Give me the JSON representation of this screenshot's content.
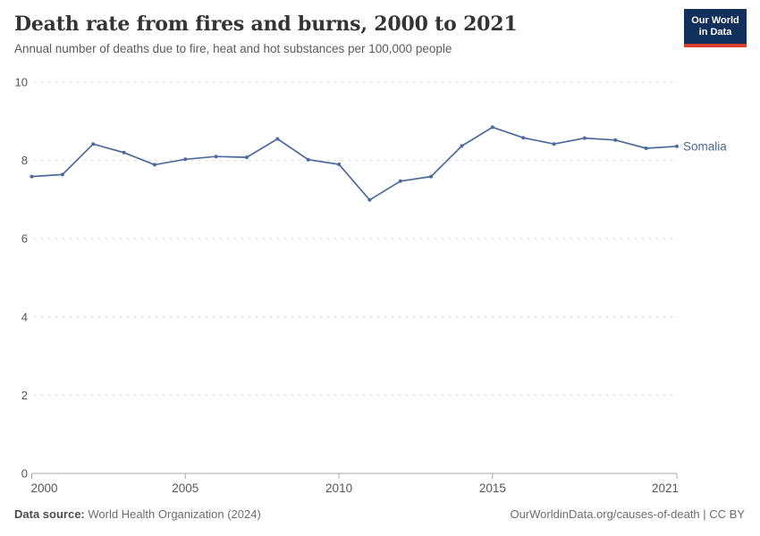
{
  "header": {
    "title": "Death rate from fires and burns, 2000 to 2021",
    "subtitle": "Annual number of deaths due to fire, heat and hot substances per 100,000 people",
    "logo": {
      "line1": "Our World",
      "line2": "in Data"
    }
  },
  "chart_data": {
    "type": "line",
    "title": "Death rate from fires and burns, 2000 to 2021",
    "x": [
      2000,
      2001,
      2002,
      2003,
      2004,
      2005,
      2006,
      2007,
      2008,
      2009,
      2010,
      2011,
      2012,
      2013,
      2014,
      2015,
      2016,
      2017,
      2018,
      2019,
      2020,
      2021
    ],
    "series": [
      {
        "name": "Somalia",
        "color": "#4c6a9c",
        "values": [
          7.59,
          7.64,
          8.42,
          8.2,
          7.89,
          8.03,
          8.1,
          8.08,
          8.55,
          8.02,
          7.9,
          6.99,
          7.47,
          7.59,
          8.37,
          8.85,
          8.58,
          8.42,
          8.57,
          8.52,
          8.31,
          8.36
        ]
      }
    ],
    "xlabel": "",
    "ylabel": "",
    "ylim": [
      0,
      10
    ],
    "yticks": [
      0,
      2,
      4,
      6,
      8,
      10
    ],
    "xticks": [
      2000,
      2005,
      2010,
      2015,
      2021
    ],
    "grid": "horizontal-dashed",
    "legend_position": "end-of-line-label"
  },
  "footer": {
    "source_label": "Data source:",
    "source_text": "World Health Organization (2024)",
    "credit": "OurWorldinData.org/causes-of-death | CC BY"
  },
  "colors": {
    "line": "#4c6a9c",
    "gridline": "#dadada",
    "axis": "#a8a8a8",
    "tick_label": "#56565b",
    "logo_bg": "#12305c",
    "logo_accent": "#dc3e32"
  }
}
